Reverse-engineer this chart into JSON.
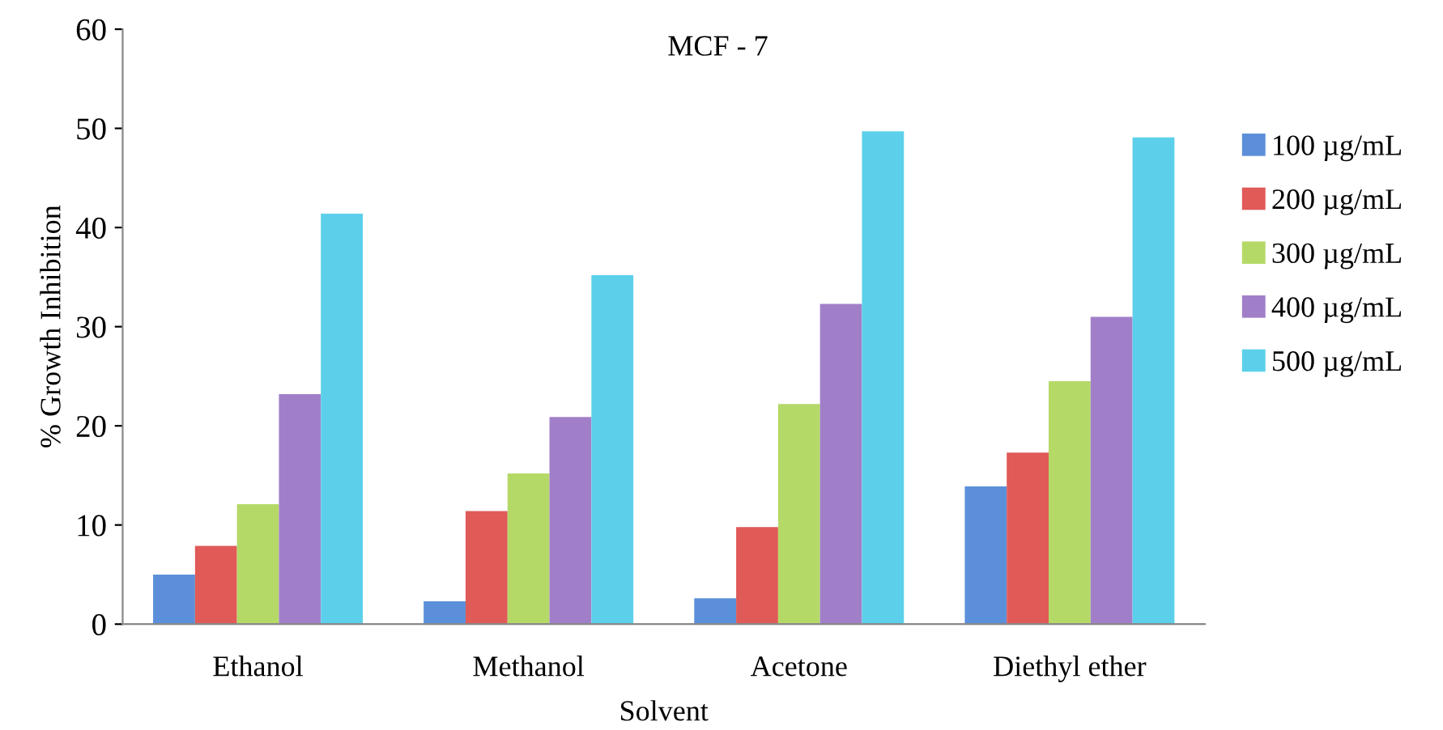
{
  "chart_data": {
    "type": "bar",
    "title": "MCF - 7",
    "xlabel": "Solvent",
    "ylabel": "% Growth Inhibition",
    "categories": [
      "Ethanol",
      "Methanol",
      "Acetone",
      "Diethyl ether"
    ],
    "series": [
      {
        "name": "100 µg/mL",
        "color": "#5b8fd9",
        "values": [
          5.0,
          2.3,
          2.6,
          13.9
        ]
      },
      {
        "name": "200 µg/mL",
        "color": "#e05a58",
        "values": [
          7.9,
          11.4,
          9.8,
          17.3
        ]
      },
      {
        "name": "300 µg/mL",
        "color": "#b5d967",
        "values": [
          12.1,
          15.2,
          22.2,
          24.5
        ]
      },
      {
        "name": "400 µg/mL",
        "color": "#a17fc8",
        "values": [
          23.2,
          20.9,
          32.3,
          31.0
        ]
      },
      {
        "name": "500 µg/mL",
        "color": "#5cd0ea",
        "values": [
          41.4,
          35.2,
          49.7,
          49.1
        ]
      }
    ],
    "ylim": [
      0,
      60
    ],
    "yticks": [
      0,
      10,
      20,
      30,
      40,
      50,
      60
    ],
    "grid": false,
    "legend": "right"
  }
}
